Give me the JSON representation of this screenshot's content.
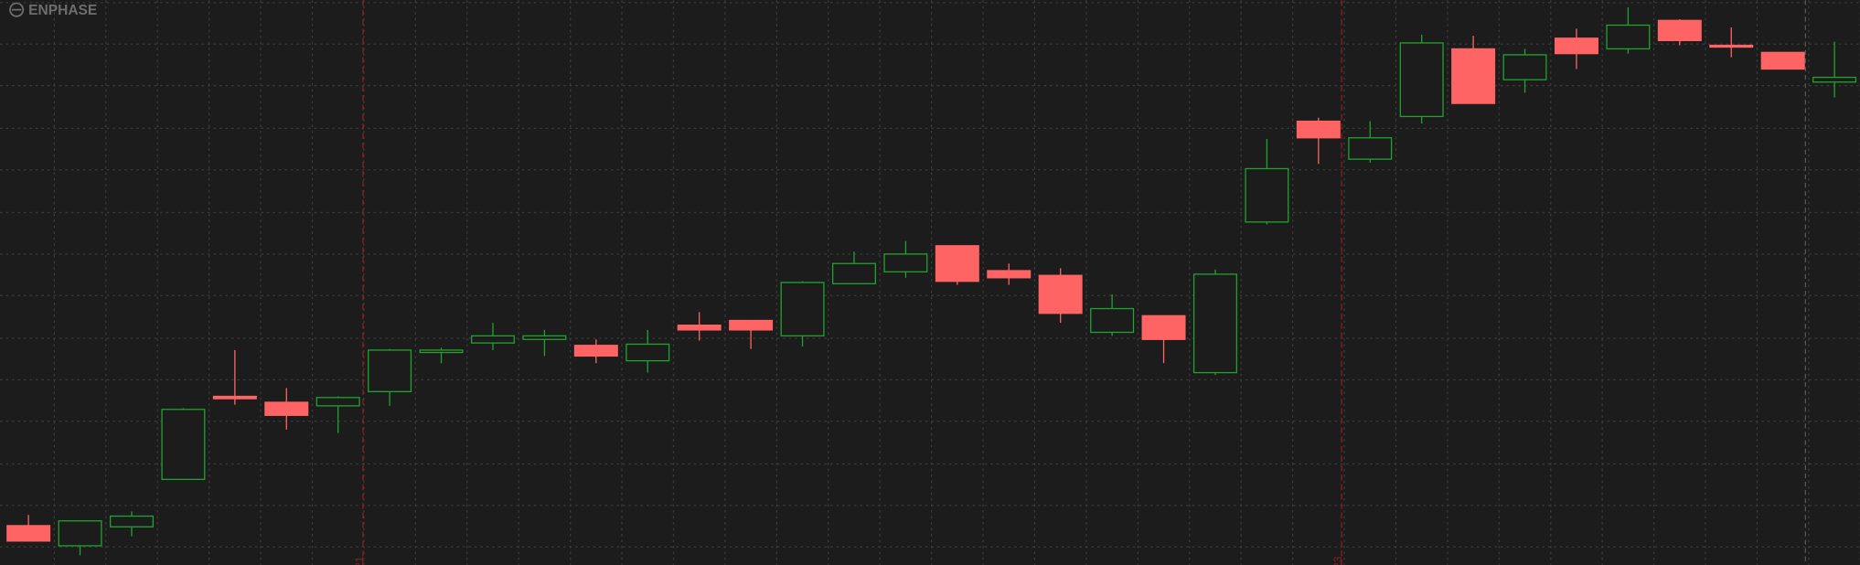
{
  "chart_data": {
    "type": "candlestick",
    "title": "ENPHASE",
    "open": [
      33,
      16,
      32,
      72,
      142,
      137,
      134,
      146,
      179,
      187,
      190,
      185,
      172,
      202,
      206,
      193,
      237,
      247,
      269,
      248,
      244,
      196,
      210,
      162,
      289,
      374,
      342,
      378,
      435,
      409,
      444,
      435,
      459,
      438,
      432,
      407
    ],
    "high": [
      42,
      37,
      45,
      132,
      181,
      149,
      142,
      182,
      183,
      204,
      198,
      190,
      198,
      213,
      206,
      239,
      264,
      273,
      269,
      254,
      250,
      228,
      210,
      249,
      359,
      377,
      374,
      447,
      446,
      435,
      452,
      470,
      460,
      453,
      432,
      441
    ],
    "low": [
      20,
      8,
      24,
      72,
      135,
      114,
      111,
      134,
      170,
      181,
      176,
      170,
      162,
      189,
      182,
      184,
      237,
      242,
      236,
      236,
      204,
      193,
      170,
      160,
      287,
      338,
      339,
      372,
      389,
      398,
      418,
      431,
      438,
      428,
      418,
      394
    ],
    "close": [
      20,
      37,
      41,
      131,
      140,
      126,
      141,
      181,
      181,
      193,
      193,
      176,
      186,
      198,
      198,
      238,
      254,
      262,
      239,
      242,
      212,
      216,
      190,
      245,
      334,
      360,
      360,
      440,
      389,
      430,
      431,
      455,
      442,
      437,
      418,
      411
    ],
    "up_color": "#1fa32e",
    "down_color": "#ff6464",
    "ylim": [
      0,
      476
    ],
    "yticks": [
      15,
      50,
      85,
      121,
      156,
      191,
      227,
      262,
      297,
      333,
      368,
      404,
      439,
      474
    ],
    "grid": true,
    "period_markers": [
      "21",
      "23"
    ]
  }
}
